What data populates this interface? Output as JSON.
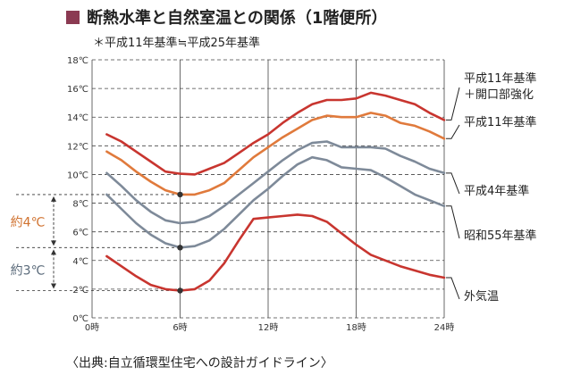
{
  "chart_data": {
    "type": "line",
    "title": "断熱水準と自然室温との関係（1階便所）",
    "subtitle": "＊平成11年基準≒平成25年基準",
    "source": "〈出典:自立循環型住宅への設計ガイドライン〉",
    "x_ticks": [
      {
        "value": 0,
        "label": "0時"
      },
      {
        "value": 6,
        "label": "6時"
      },
      {
        "value": 12,
        "label": "12時"
      },
      {
        "value": 18,
        "label": "18時"
      },
      {
        "value": 24,
        "label": "24時"
      }
    ],
    "y_ticks": [
      {
        "value": 0,
        "label": "0℃"
      },
      {
        "value": 2,
        "label": "2℃"
      },
      {
        "value": 4,
        "label": "4℃"
      },
      {
        "value": 6,
        "label": "6℃"
      },
      {
        "value": 8,
        "label": "8℃"
      },
      {
        "value": 10,
        "label": "10℃"
      },
      {
        "value": 12,
        "label": "12℃"
      },
      {
        "value": 14,
        "label": "14℃"
      },
      {
        "value": 16,
        "label": "16℃"
      },
      {
        "value": 18,
        "label": "18℃"
      }
    ],
    "xlim": [
      0,
      24
    ],
    "ylim": [
      0,
      18
    ],
    "grid": "horizontal-dashed",
    "series": [
      {
        "name": "平成11年基準\n＋開口部強化",
        "color": "#c8352f",
        "points": [
          [
            1,
            12.8
          ],
          [
            2,
            12.3
          ],
          [
            3,
            11.6
          ],
          [
            4,
            10.9
          ],
          [
            5,
            10.2
          ],
          [
            6,
            10.05
          ],
          [
            7,
            10.0
          ],
          [
            8,
            10.4
          ],
          [
            9,
            10.8
          ],
          [
            10,
            11.5
          ],
          [
            11,
            12.2
          ],
          [
            12,
            12.8
          ],
          [
            13,
            13.6
          ],
          [
            14,
            14.3
          ],
          [
            15,
            14.9
          ],
          [
            16,
            15.2
          ],
          [
            17,
            15.2
          ],
          [
            18,
            15.3
          ],
          [
            19,
            15.7
          ],
          [
            20,
            15.5
          ],
          [
            21,
            15.2
          ],
          [
            22,
            14.9
          ],
          [
            23,
            14.3
          ],
          [
            24,
            13.8
          ]
        ]
      },
      {
        "name": "平成11年基準",
        "color": "#e07a3c",
        "points": [
          [
            1,
            11.6
          ],
          [
            2,
            11.0
          ],
          [
            3,
            10.2
          ],
          [
            4,
            9.5
          ],
          [
            5,
            8.9
          ],
          [
            6,
            8.6
          ],
          [
            7,
            8.6
          ],
          [
            8,
            8.9
          ],
          [
            9,
            9.4
          ],
          [
            10,
            10.3
          ],
          [
            11,
            11.2
          ],
          [
            12,
            11.9
          ],
          [
            13,
            12.6
          ],
          [
            14,
            13.2
          ],
          [
            15,
            13.8
          ],
          [
            16,
            14.1
          ],
          [
            17,
            14.0
          ],
          [
            18,
            14.0
          ],
          [
            19,
            14.3
          ],
          [
            20,
            14.1
          ],
          [
            21,
            13.6
          ],
          [
            22,
            13.4
          ],
          [
            23,
            13.0
          ],
          [
            24,
            12.5
          ]
        ]
      },
      {
        "name": "平成4年基準",
        "color": "#7e8a99",
        "points": [
          [
            1,
            10.1
          ],
          [
            2,
            9.2
          ],
          [
            3,
            8.2
          ],
          [
            4,
            7.4
          ],
          [
            5,
            6.8
          ],
          [
            6,
            6.6
          ],
          [
            7,
            6.7
          ],
          [
            8,
            7.1
          ],
          [
            9,
            7.8
          ],
          [
            10,
            8.6
          ],
          [
            11,
            9.4
          ],
          [
            12,
            10.2
          ],
          [
            13,
            11.0
          ],
          [
            14,
            11.7
          ],
          [
            15,
            12.2
          ],
          [
            16,
            12.3
          ],
          [
            17,
            11.9
          ],
          [
            18,
            11.9
          ],
          [
            19,
            11.9
          ],
          [
            20,
            11.8
          ],
          [
            21,
            11.3
          ],
          [
            22,
            10.9
          ],
          [
            23,
            10.4
          ],
          [
            24,
            10.1
          ]
        ]
      },
      {
        "name": "昭和55年基準",
        "color": "#7e8a99",
        "points": [
          [
            1,
            8.6
          ],
          [
            2,
            7.6
          ],
          [
            3,
            6.6
          ],
          [
            4,
            5.8
          ],
          [
            5,
            5.2
          ],
          [
            6,
            4.9
          ],
          [
            7,
            5.0
          ],
          [
            8,
            5.4
          ],
          [
            9,
            6.2
          ],
          [
            10,
            7.2
          ],
          [
            11,
            8.2
          ],
          [
            12,
            9.0
          ],
          [
            13,
            9.9
          ],
          [
            14,
            10.7
          ],
          [
            15,
            11.2
          ],
          [
            16,
            11.0
          ],
          [
            17,
            10.5
          ],
          [
            18,
            10.4
          ],
          [
            19,
            10.3
          ],
          [
            20,
            9.8
          ],
          [
            21,
            9.2
          ],
          [
            22,
            8.6
          ],
          [
            23,
            8.2
          ],
          [
            24,
            7.8
          ]
        ]
      },
      {
        "name": "外気温",
        "color": "#c8352f",
        "points": [
          [
            1,
            4.3
          ],
          [
            2,
            3.6
          ],
          [
            3,
            2.9
          ],
          [
            4,
            2.3
          ],
          [
            5,
            2.0
          ],
          [
            6,
            1.9
          ],
          [
            7,
            2.0
          ],
          [
            8,
            2.6
          ],
          [
            9,
            3.8
          ],
          [
            10,
            5.4
          ],
          [
            11,
            6.9
          ],
          [
            12,
            7.0
          ],
          [
            13,
            7.1
          ],
          [
            14,
            7.2
          ],
          [
            15,
            7.1
          ],
          [
            16,
            6.7
          ],
          [
            17,
            5.9
          ],
          [
            18,
            5.1
          ],
          [
            19,
            4.4
          ],
          [
            20,
            4.0
          ],
          [
            21,
            3.6
          ],
          [
            22,
            3.3
          ],
          [
            23,
            3.0
          ],
          [
            24,
            2.8
          ]
        ]
      }
    ],
    "reference_points": [
      {
        "x": 6,
        "y": 8.6
      },
      {
        "x": 6,
        "y": 4.9
      },
      {
        "x": 6,
        "y": 1.9
      }
    ],
    "reference_lines": [
      8.6,
      4.9,
      1.9
    ],
    "annotations": [
      {
        "text": "約4℃",
        "from": 4.9,
        "to": 8.6,
        "color": "#d0722f"
      },
      {
        "text": "約3℃",
        "from": 1.9,
        "to": 4.9,
        "color": "#5a6a7a"
      }
    ]
  }
}
